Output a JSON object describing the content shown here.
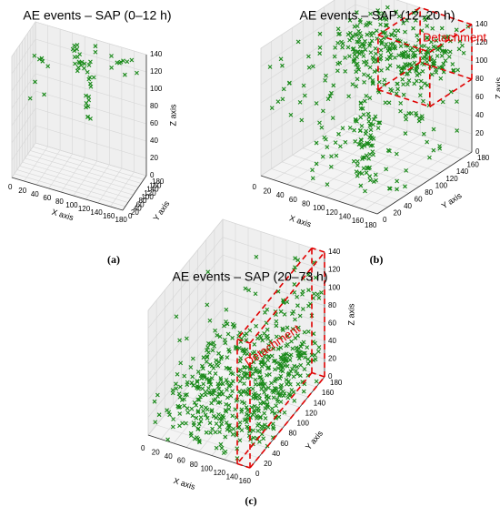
{
  "chart_data": [
    {
      "type": "scatter",
      "panel": "(a)",
      "title": "AE events – SAP (0–12 h)",
      "xlabel": "X axis",
      "ylabel": "Y axis",
      "zlabel": "Z axis",
      "xticks": [
        "0",
        "20",
        "40",
        "60",
        "80",
        "100",
        "120",
        "140",
        "160",
        "180"
      ],
      "yticks": [
        "0",
        "20",
        "40",
        "60",
        "80",
        "100",
        "120",
        "140",
        "160",
        "180"
      ],
      "zticks": [
        "0",
        "20",
        "40",
        "60",
        "80",
        "100",
        "120",
        "140"
      ],
      "xlim": [
        0,
        180
      ],
      "ylim": [
        0,
        180
      ],
      "zlim": [
        0,
        140
      ],
      "grid": true,
      "marker": "x",
      "color": "#1a8a1a",
      "annotation": "",
      "seed": 11,
      "clusters": [
        {
          "n": 26,
          "x": [
            70,
            110
          ],
          "y": [
            120,
            170
          ],
          "z": [
            100,
            140
          ]
        },
        {
          "n": 10,
          "x": [
            90,
            100
          ],
          "y": [
            110,
            150
          ],
          "z": [
            55,
            100
          ]
        },
        {
          "n": 8,
          "x": [
            0,
            30
          ],
          "y": [
            130,
            180
          ],
          "z": [
            60,
            110
          ]
        },
        {
          "n": 10,
          "x": [
            120,
            180
          ],
          "y": [
            150,
            180
          ],
          "z": [
            110,
            140
          ]
        }
      ]
    },
    {
      "type": "scatter",
      "panel": "(b)",
      "title": "AE events – SAP (12–20 h)",
      "xlabel": "X axis",
      "ylabel": "Y axis",
      "zlabel": "Z axis",
      "xticks": [
        "0",
        "20",
        "40",
        "60",
        "80",
        "100",
        "120",
        "140",
        "160",
        "180"
      ],
      "yticks": [
        "0",
        "20",
        "40",
        "60",
        "80",
        "100",
        "120",
        "140",
        "160",
        "180"
      ],
      "zticks": [
        "0",
        "20",
        "40",
        "60",
        "80",
        "100",
        "120",
        "140"
      ],
      "xlim": [
        0,
        180
      ],
      "ylim": [
        0,
        180
      ],
      "zlim": [
        0,
        140
      ],
      "grid": true,
      "marker": "x",
      "color": "#1a8a1a",
      "annotation": "Detachment",
      "seed": 23,
      "clusters": [
        {
          "n": 240,
          "x": [
            40,
            180
          ],
          "y": [
            80,
            180
          ],
          "z": [
            90,
            140
          ]
        },
        {
          "n": 180,
          "x": [
            0,
            180
          ],
          "y": [
            0,
            180
          ],
          "z": [
            0,
            140
          ]
        },
        {
          "n": 50,
          "x": [
            110,
            125
          ],
          "y": [
            40,
            70
          ],
          "z": [
            0,
            90
          ]
        }
      ],
      "box": {
        "x": [
          100,
          180
        ],
        "y": [
          100,
          180
        ],
        "z": [
          80,
          140
        ]
      }
    },
    {
      "type": "scatter",
      "panel": "(c)",
      "title": "AE events – SAP (20–73 h)",
      "xlabel": "X axis",
      "ylabel": "Y axis",
      "zlabel": "Z axis",
      "xticks": [
        "0",
        "20",
        "40",
        "60",
        "80",
        "100",
        "120",
        "140",
        "160"
      ],
      "yticks": [
        "0",
        "20",
        "40",
        "60",
        "80",
        "100",
        "120",
        "140",
        "160",
        "180"
      ],
      "zticks": [
        "0",
        "20",
        "40",
        "60",
        "80",
        "100",
        "120",
        "140"
      ],
      "xlim": [
        0,
        160
      ],
      "ylim": [
        0,
        180
      ],
      "zlim": [
        0,
        140
      ],
      "grid": true,
      "marker": "x",
      "color": "#1a8a1a",
      "annotation": "Detachment",
      "seed": 37,
      "clusters": [
        {
          "n": 420,
          "x": [
            0,
            160
          ],
          "y": [
            0,
            180
          ],
          "z": [
            0,
            40
          ]
        },
        {
          "n": 160,
          "x": [
            130,
            160
          ],
          "y": [
            0,
            180
          ],
          "z": [
            20,
            140
          ]
        },
        {
          "n": 25,
          "x": [
            0,
            160
          ],
          "y": [
            0,
            180
          ],
          "z": [
            40,
            140
          ]
        }
      ],
      "box": {
        "x": [
          140,
          160
        ],
        "y": [
          0,
          180
        ],
        "z": [
          0,
          140
        ]
      }
    }
  ]
}
